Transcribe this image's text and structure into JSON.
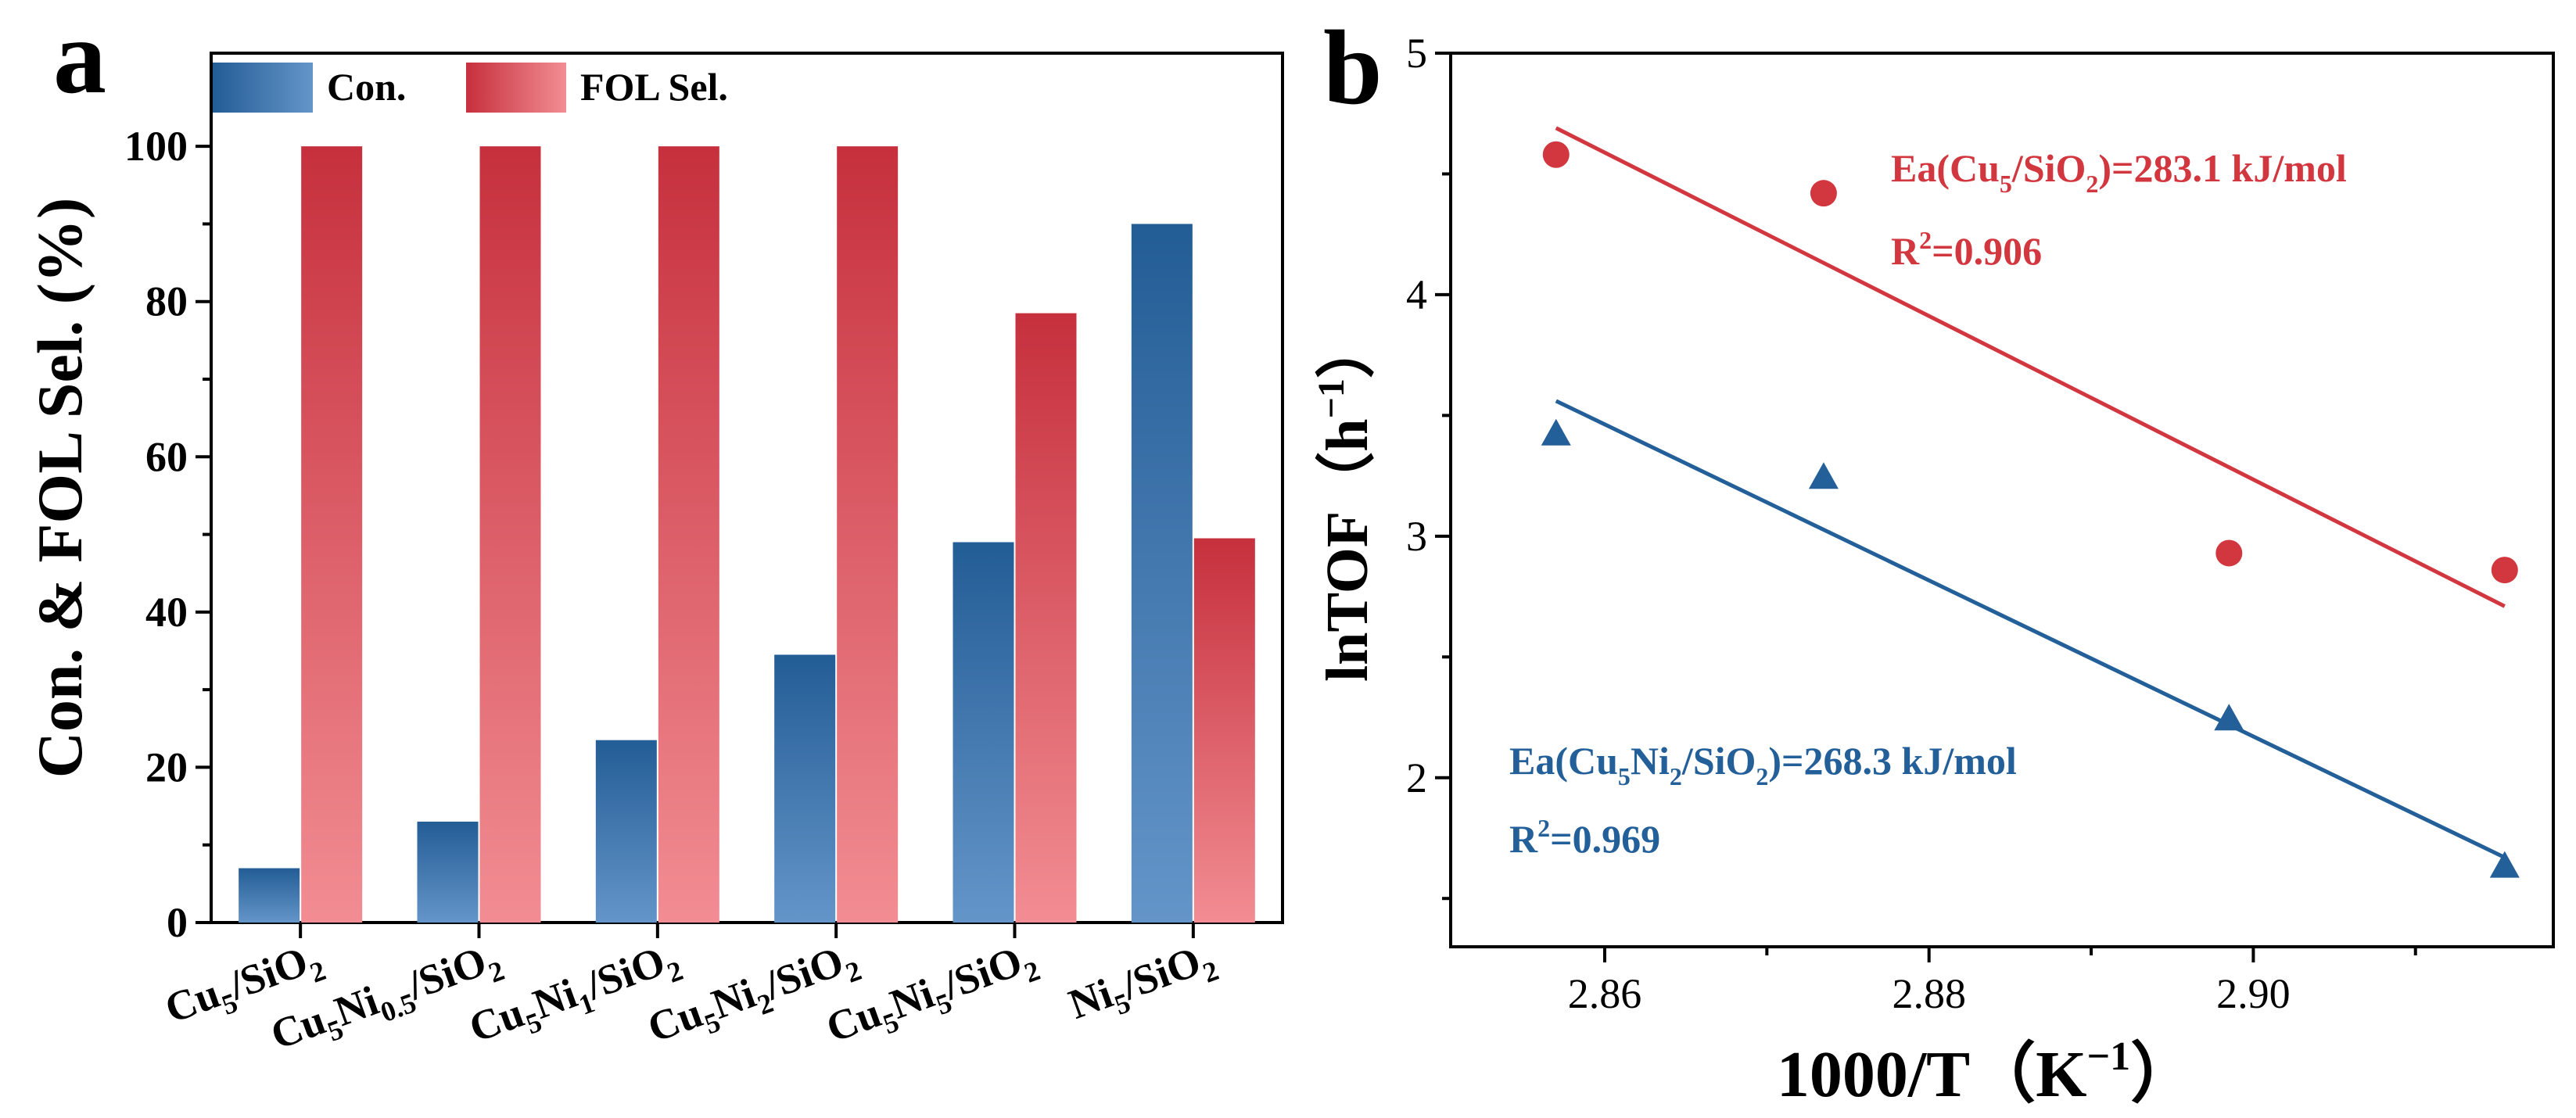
{
  "colors": {
    "con_dark": "#235d95",
    "con_light": "#6495c9",
    "sel_dark": "#c6303d",
    "sel_light": "#f28d93",
    "line_red": "#d2373f",
    "line_blue": "#235f98",
    "axis": "#000000"
  },
  "chart_data": [
    {
      "type": "bar",
      "panel_label": "a",
      "ylabel": "Con. & FOL Sel. (%)",
      "ylim": [
        0,
        112
      ],
      "yticks": [
        0,
        20,
        40,
        60,
        80,
        100
      ],
      "legend": {
        "placement": "top-left",
        "entries": [
          "Con.",
          "FOL Sel."
        ]
      },
      "categories": [
        {
          "base": "Cu",
          "s1": "5",
          "mid": "/SiO",
          "s2": "2",
          "tail": ""
        },
        {
          "base": "Cu",
          "s1": "5",
          "mid": "Ni",
          "s2": "0.5",
          "tail": "/SiO",
          "s3": "2"
        },
        {
          "base": "Cu",
          "s1": "5",
          "mid": "Ni",
          "s2": "1",
          "tail": "/SiO",
          "s3": "2"
        },
        {
          "base": "Cu",
          "s1": "5",
          "mid": "Ni",
          "s2": "2",
          "tail": "/SiO",
          "s3": "2"
        },
        {
          "base": "Cu",
          "s1": "5",
          "mid": "Ni",
          "s2": "5",
          "tail": "/SiO",
          "s3": "2"
        },
        {
          "base": "Ni",
          "s1": "5",
          "mid": "/SiO",
          "s2": "2",
          "tail": ""
        }
      ],
      "series": [
        {
          "name": "Con.",
          "values": [
            7,
            13,
            23.5,
            34.5,
            49,
            90
          ]
        },
        {
          "name": "FOL Sel.",
          "values": [
            100,
            100,
            100,
            100,
            78.5,
            49.5
          ]
        }
      ]
    },
    {
      "type": "scatter",
      "panel_label": "b",
      "xlabel": "1000/T（K",
      "xlabel_sup": "−1",
      "xlabel_close": "）",
      "ylabel": "lnTOF（h",
      "ylabel_sup": "−1",
      "ylabel_close": "）",
      "xlim": [
        2.8505,
        2.9185
      ],
      "ylim": [
        1.3,
        5.0
      ],
      "xticks": [
        2.86,
        2.88,
        2.9
      ],
      "yticks": [
        2,
        3,
        4,
        5
      ],
      "series": [
        {
          "name": "Cu5/SiO2",
          "marker": "circle",
          "x": [
            2.857,
            2.8735,
            2.8985,
            2.9155
          ],
          "y": [
            4.58,
            4.42,
            2.93,
            2.86
          ],
          "fit": {
            "x": [
              2.857,
              2.9155
            ],
            "y": [
              4.69,
              2.71
            ]
          },
          "annotation": {
            "pre": "Ea(Cu",
            "sub1": "5",
            "mid": "/SiO",
            "sub2": "2",
            "post": ")=283.1 kJ/mol"
          },
          "r2": {
            "pre": "R",
            "sup": "2",
            "post": "=0.906"
          }
        },
        {
          "name": "Cu5Ni2/SiO2",
          "marker": "triangle",
          "x": [
            2.857,
            2.8735,
            2.8985,
            2.9155
          ],
          "y": [
            3.42,
            3.24,
            2.24,
            1.63
          ],
          "fit": {
            "x": [
              2.857,
              2.9155
            ],
            "y": [
              3.56,
              1.67
            ]
          },
          "annotation": {
            "pre": "Ea(Cu",
            "sub1": "5",
            "mid": "Ni",
            "sub2": "2",
            "mid2": "/SiO",
            "sub3": "2",
            "post": ")=268.3 kJ/mol"
          },
          "r2": {
            "pre": "R",
            "sup": "2",
            "post": "=0.969"
          }
        }
      ]
    }
  ]
}
